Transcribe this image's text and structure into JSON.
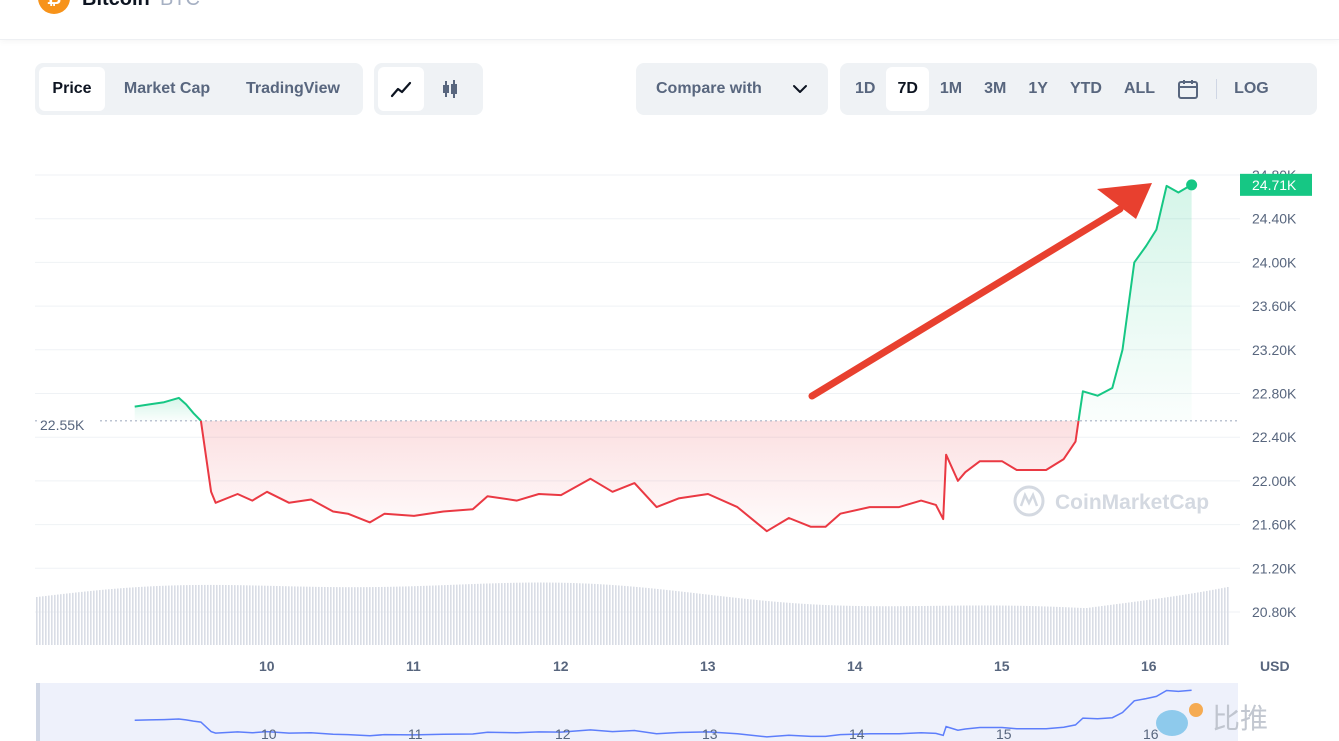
{
  "header": {
    "coin_logo_text": "₿",
    "coin_name": "Bitcoin",
    "coin_symbol": "BTC"
  },
  "view_tabs": [
    "Price",
    "Market Cap",
    "TradingView"
  ],
  "active_view": "Price",
  "chart_modes": [
    "line-chart-icon",
    "candlestick-icon"
  ],
  "compare": {
    "label": "Compare with"
  },
  "ranges": [
    "1D",
    "7D",
    "1M",
    "3M",
    "1Y",
    "YTD",
    "ALL"
  ],
  "active_range": "7D",
  "log_label": "LOG",
  "watermark": "CoinMarketCap",
  "corner_watermark": "比推",
  "colors": {
    "up": "#16c784",
    "down": "#ea3943",
    "arrow": "#e8402f",
    "accent": "#3861fb"
  },
  "chart_data": {
    "type": "line",
    "currency_label": "USD",
    "reference_price_label": "22.55K",
    "reference_price": 22550,
    "current_price_label": "24.71K",
    "current_price": 24710,
    "y_ticks": [
      "24.80K",
      "24.40K",
      "24.00K",
      "23.60K",
      "23.20K",
      "22.80K",
      "22.40K",
      "22.00K",
      "21.60K",
      "21.20K",
      "20.80K"
    ],
    "y_range": [
      20800,
      24800
    ],
    "x_ticks": [
      "10",
      "11",
      "12",
      "13",
      "14",
      "15",
      "16"
    ],
    "series": [
      {
        "values": [
          [
            9.1,
            22680
          ],
          [
            9.2,
            22700
          ],
          [
            9.3,
            22720
          ],
          [
            9.4,
            22760
          ],
          [
            9.45,
            22700
          ],
          [
            9.5,
            22620
          ],
          [
            9.55,
            22550
          ],
          [
            9.62,
            21900
          ],
          [
            9.65,
            21800
          ],
          [
            9.8,
            21880
          ],
          [
            9.9,
            21820
          ],
          [
            10.0,
            21900
          ],
          [
            10.15,
            21800
          ],
          [
            10.3,
            21830
          ],
          [
            10.45,
            21720
          ],
          [
            10.55,
            21700
          ],
          [
            10.7,
            21620
          ],
          [
            10.8,
            21700
          ],
          [
            11.0,
            21680
          ],
          [
            11.2,
            21720
          ],
          [
            11.4,
            21740
          ],
          [
            11.5,
            21860
          ],
          [
            11.7,
            21820
          ],
          [
            11.85,
            21880
          ],
          [
            12.0,
            21870
          ],
          [
            12.2,
            22020
          ],
          [
            12.35,
            21900
          ],
          [
            12.5,
            21980
          ],
          [
            12.65,
            21760
          ],
          [
            12.8,
            21840
          ],
          [
            13.0,
            21880
          ],
          [
            13.2,
            21760
          ],
          [
            13.4,
            21540
          ],
          [
            13.55,
            21660
          ],
          [
            13.7,
            21580
          ],
          [
            13.8,
            21580
          ],
          [
            13.9,
            21700
          ],
          [
            14.1,
            21760
          ],
          [
            14.3,
            21760
          ],
          [
            14.45,
            21820
          ],
          [
            14.55,
            21780
          ],
          [
            14.6,
            21650
          ],
          [
            14.62,
            22240
          ],
          [
            14.7,
            22000
          ],
          [
            14.75,
            22080
          ],
          [
            14.85,
            22180
          ],
          [
            15.0,
            22180
          ],
          [
            15.1,
            22100
          ],
          [
            15.3,
            22100
          ],
          [
            15.42,
            22200
          ],
          [
            15.5,
            22360
          ],
          [
            15.55,
            22820
          ],
          [
            15.65,
            22780
          ],
          [
            15.75,
            22850
          ],
          [
            15.82,
            23200
          ],
          [
            15.9,
            24000
          ],
          [
            15.98,
            24150
          ],
          [
            16.05,
            24300
          ],
          [
            16.12,
            24700
          ],
          [
            16.2,
            24640
          ],
          [
            16.29,
            24710
          ]
        ]
      }
    ],
    "volume_note": "volume bars below price",
    "annotation": "red-arrow pointing up-right to latest price"
  }
}
